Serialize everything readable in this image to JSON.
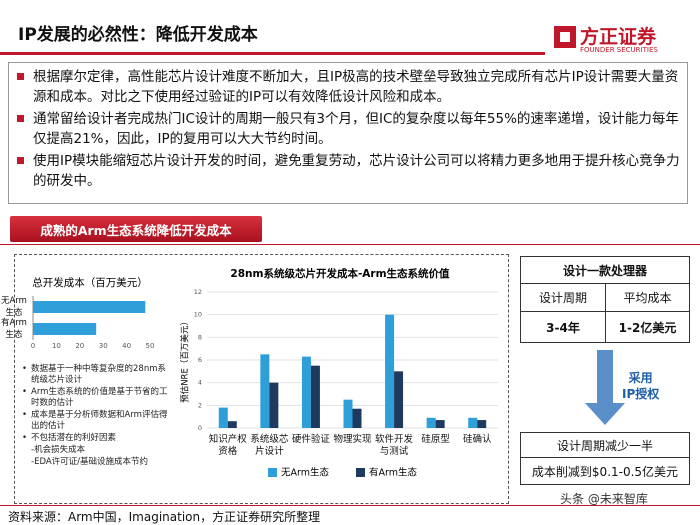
{
  "header": {
    "title": "IP发展的必然性：降低开发成本",
    "logo_cn": "方正证券",
    "logo_en": "FOUNDER SECURITIES"
  },
  "bullets": [
    "根据摩尔定律，高性能芯片设计难度不断加大，且IP极高的技术壁垒导致独立完成所有芯片IP设计需要大量资源和成本。对比之下使用经过验证的IP可以有效降低设计风险和成本。",
    "通常留给设计者完成热门IC设计的周期一般只有3个月，但IC的复杂度以每年55%的速率递增，设计能力每年仅提高21%，因此，IP的复用可以大大节约时间。",
    "使用IP模块能缩短芯片设计开发的时间，避免重复劳动，芯片设计公司可以将精力更多地用于提升核心竞争力的研发中。"
  ],
  "section_tab": "成熟的Arm生态系统降低开发成本",
  "notes": [
    "数据基于一种中等复杂度的28nm系统级芯片设计",
    "Arm生态系统的价值是基于节省的工时数的估计",
    "成本是基于分析师数据和Arm评估得出的估计",
    "不包括潜在的利好因素",
    "-机会损失成本",
    "-EDA许可证/基础设施成本节约"
  ],
  "chart_data": [
    {
      "type": "barh",
      "title": "总开发成本（百万美元）",
      "categories": [
        "无Arm生态",
        "有Arm生态"
      ],
      "values": [
        48,
        27
      ],
      "color": "#2e9fd8",
      "xlim": [
        0,
        50
      ],
      "xticks": [
        0,
        10,
        20,
        30,
        40,
        50
      ]
    },
    {
      "type": "bar",
      "title": "28nm系统级芯片开发成本-Arm生态系统价值",
      "ylabel": "预估NRE（百万美元）",
      "categories": [
        "知识产权资格",
        "系统级芯片设计",
        "硬件验证",
        "物理实现",
        "软件开发与测试",
        "硅原型",
        "硅确认"
      ],
      "series": [
        {
          "name": "无Arm生态",
          "color": "#2e9fd8",
          "values": [
            1.8,
            6.5,
            6.3,
            2.5,
            10,
            0.9,
            0.9
          ]
        },
        {
          "name": "有Arm生态",
          "color": "#1f3a5f",
          "values": [
            0.6,
            4,
            5.5,
            1.7,
            5,
            0.7,
            0.7
          ]
        }
      ],
      "ylim": [
        0,
        12
      ],
      "yticks": [
        0,
        2,
        4,
        6,
        8,
        10,
        12
      ],
      "grid": true,
      "legend": "bottom"
    }
  ],
  "table": {
    "title": "设计一款处理器",
    "headers": [
      "设计周期",
      "平均成本"
    ],
    "row": [
      "3-4年",
      "1-2亿美元"
    ]
  },
  "arrow_text": [
    "采用",
    "IP授权"
  ],
  "result": [
    "设计周期减少一半",
    "成本削减到$0.1-0.5亿美元"
  ],
  "source": "资料来源：Arm中国，Imagination，方正证券研究所整理",
  "watermark": "头条 @未来智库"
}
